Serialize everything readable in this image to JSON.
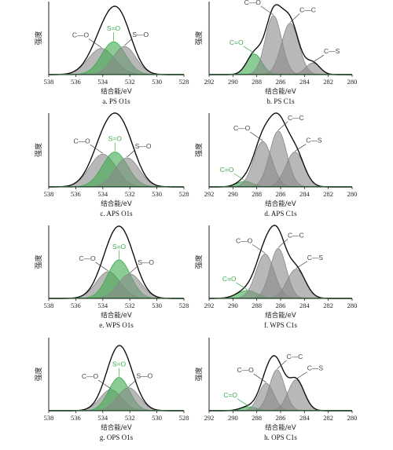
{
  "figure": {
    "y_axis_label": "强度",
    "x_axis_label": "结合能/eV"
  },
  "colors": {
    "envelope": "#111111",
    "baseline": "#2e9e43",
    "C-O": "#d9534f",
    "S=O": "#3caa4c",
    "S-O": "#5463c8",
    "C=O": "#3caa4c",
    "C-C": "#5158c8",
    "C-S": "#b458b8"
  },
  "chart_data": [
    {
      "id": "a",
      "type": "area",
      "caption": "a. PS O1s",
      "xlim": [
        538,
        528
      ],
      "xticks": [
        538,
        536,
        534,
        532,
        530,
        528
      ],
      "envelope_peak_normalized": 1.0,
      "grid": false,
      "series": [
        {
          "name": "C—O",
          "center": 534.1,
          "fwhm": 2.3,
          "amplitude": 0.4
        },
        {
          "name": "S=O",
          "center": 533.2,
          "fwhm": 2.1,
          "amplitude": 0.5
        },
        {
          "name": "S—O",
          "center": 532.4,
          "fwhm": 2.0,
          "amplitude": 0.43
        }
      ]
    },
    {
      "id": "b",
      "type": "area",
      "caption": "b. PS C1s",
      "xlim": [
        292,
        280
      ],
      "xticks": [
        292,
        290,
        288,
        286,
        284,
        282,
        280
      ],
      "envelope_peak_normalized": 1.0,
      "grid": false,
      "series": [
        {
          "name": "C=O",
          "center": 288.2,
          "fwhm": 1.5,
          "amplitude": 0.3
        },
        {
          "name": "C—O",
          "center": 286.6,
          "fwhm": 1.6,
          "amplitude": 0.86
        },
        {
          "name": "C—C",
          "center": 285.2,
          "fwhm": 1.7,
          "amplitude": 0.75
        },
        {
          "name": "C—S",
          "center": 283.3,
          "fwhm": 1.4,
          "amplitude": 0.17
        }
      ]
    },
    {
      "id": "c",
      "type": "area",
      "caption": "c. APS O1s",
      "xlim": [
        538,
        528
      ],
      "xticks": [
        538,
        536,
        534,
        532,
        530,
        528
      ],
      "envelope_peak_normalized": 1.0,
      "grid": false,
      "series": [
        {
          "name": "C—O",
          "center": 534.0,
          "fwhm": 2.3,
          "amplitude": 0.45
        },
        {
          "name": "S=O",
          "center": 533.1,
          "fwhm": 2.2,
          "amplitude": 0.48
        },
        {
          "name": "S—O",
          "center": 532.2,
          "fwhm": 2.1,
          "amplitude": 0.4
        }
      ]
    },
    {
      "id": "d",
      "type": "area",
      "caption": "d. APS C1s",
      "xlim": [
        292,
        280
      ],
      "xticks": [
        292,
        290,
        288,
        286,
        284,
        282,
        280
      ],
      "envelope_peak_normalized": 1.0,
      "grid": false,
      "series": [
        {
          "name": "C=O",
          "center": 289.0,
          "fwhm": 1.6,
          "amplitude": 0.08
        },
        {
          "name": "C—O",
          "center": 287.5,
          "fwhm": 1.8,
          "amplitude": 0.65
        },
        {
          "name": "C—C",
          "center": 286.2,
          "fwhm": 1.7,
          "amplitude": 0.8
        },
        {
          "name": "C—S",
          "center": 284.8,
          "fwhm": 1.8,
          "amplitude": 0.5
        }
      ]
    },
    {
      "id": "e",
      "type": "area",
      "caption": "e. WPS O1s",
      "xlim": [
        538,
        528
      ],
      "xticks": [
        538,
        536,
        534,
        532,
        530,
        528
      ],
      "envelope_peak_normalized": 1.0,
      "grid": false,
      "series": [
        {
          "name": "C—O",
          "center": 533.6,
          "fwhm": 2.1,
          "amplitude": 0.36
        },
        {
          "name": "S=O",
          "center": 532.8,
          "fwhm": 2.0,
          "amplitude": 0.52
        },
        {
          "name": "S—O",
          "center": 532.0,
          "fwhm": 2.0,
          "amplitude": 0.33
        }
      ]
    },
    {
      "id": "f",
      "type": "area",
      "caption": "f. WPS C1s",
      "xlim": [
        292,
        280
      ],
      "xticks": [
        292,
        290,
        288,
        286,
        284,
        282,
        280
      ],
      "envelope_peak_normalized": 1.0,
      "grid": false,
      "series": [
        {
          "name": "C=O",
          "center": 288.8,
          "fwhm": 2.0,
          "amplitude": 0.13
        },
        {
          "name": "C—O",
          "center": 287.3,
          "fwhm": 1.8,
          "amplitude": 0.73
        },
        {
          "name": "C—C",
          "center": 286.2,
          "fwhm": 1.6,
          "amplitude": 0.82
        },
        {
          "name": "C—S",
          "center": 284.7,
          "fwhm": 1.8,
          "amplitude": 0.48
        }
      ]
    },
    {
      "id": "g",
      "type": "area",
      "caption": "g. OPS O1s",
      "xlim": [
        538,
        528
      ],
      "xticks": [
        538,
        536,
        534,
        532,
        530,
        528
      ],
      "envelope_peak_normalized": 1.0,
      "grid": false,
      "series": [
        {
          "name": "C—O",
          "center": 533.4,
          "fwhm": 1.9,
          "amplitude": 0.33
        },
        {
          "name": "S=O",
          "center": 532.8,
          "fwhm": 1.8,
          "amplitude": 0.52
        },
        {
          "name": "S—O",
          "center": 532.1,
          "fwhm": 1.9,
          "amplitude": 0.36
        }
      ]
    },
    {
      "id": "h",
      "type": "area",
      "caption": "h. OPS C1s",
      "xlim": [
        292,
        280
      ],
      "xticks": [
        292,
        290,
        288,
        286,
        284,
        282,
        280
      ],
      "envelope_peak_normalized": 1.0,
      "grid": false,
      "series": [
        {
          "name": "C=O",
          "center": 288.7,
          "fwhm": 1.6,
          "amplitude": 0.08
        },
        {
          "name": "C—O",
          "center": 287.2,
          "fwhm": 1.5,
          "amplitude": 0.55
        },
        {
          "name": "C—C",
          "center": 286.3,
          "fwhm": 1.5,
          "amplitude": 0.82
        },
        {
          "name": "C—S",
          "center": 284.7,
          "fwhm": 1.6,
          "amplitude": 0.62
        }
      ]
    }
  ]
}
